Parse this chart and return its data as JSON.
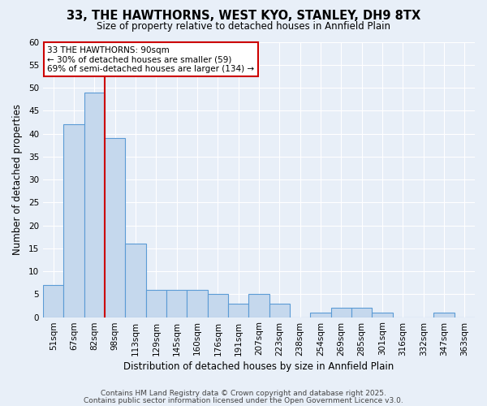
{
  "title": "33, THE HAWTHORNS, WEST KYO, STANLEY, DH9 8TX",
  "subtitle": "Size of property relative to detached houses in Annfield Plain",
  "xlabel": "Distribution of detached houses by size in Annfield Plain",
  "ylabel": "Number of detached properties",
  "categories": [
    "51sqm",
    "67sqm",
    "82sqm",
    "98sqm",
    "113sqm",
    "129sqm",
    "145sqm",
    "160sqm",
    "176sqm",
    "191sqm",
    "207sqm",
    "223sqm",
    "238sqm",
    "254sqm",
    "269sqm",
    "285sqm",
    "301sqm",
    "316sqm",
    "332sqm",
    "347sqm",
    "363sqm"
  ],
  "values": [
    7,
    42,
    49,
    39,
    16,
    6,
    6,
    6,
    5,
    3,
    5,
    3,
    0,
    1,
    2,
    2,
    1,
    0,
    0,
    1,
    0
  ],
  "bar_color": "#c5d8ed",
  "bar_edge_color": "#5b9bd5",
  "background_color": "#e8eff8",
  "grid_color": "#ffffff",
  "red_line_index": 2,
  "annotation_text": "33 THE HAWTHORNS: 90sqm\n← 30% of detached houses are smaller (59)\n69% of semi-detached houses are larger (134) →",
  "annotation_box_color": "#ffffff",
  "annotation_box_edge": "#cc0000",
  "footer_line1": "Contains HM Land Registry data © Crown copyright and database right 2025.",
  "footer_line2": "Contains public sector information licensed under the Open Government Licence v3.0.",
  "ylim": [
    0,
    60
  ],
  "yticks": [
    0,
    5,
    10,
    15,
    20,
    25,
    30,
    35,
    40,
    45,
    50,
    55,
    60
  ],
  "title_fontsize": 10.5,
  "subtitle_fontsize": 8.5,
  "xlabel_fontsize": 8.5,
  "ylabel_fontsize": 8.5,
  "tick_fontsize": 7.5,
  "annotation_fontsize": 7.5,
  "footer_fontsize": 6.5
}
